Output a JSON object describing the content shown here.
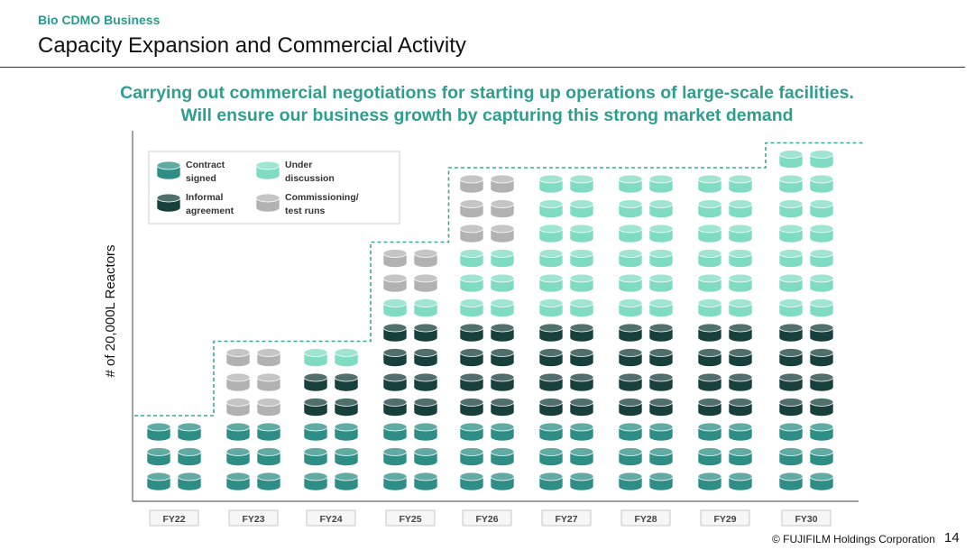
{
  "header": {
    "section_label": "Bio CDMO Business",
    "title": "Capacity Expansion and Commercial Activity"
  },
  "headline": {
    "line1": "Carrying out commercial negotiations for starting up operations of large-scale facilities.",
    "line2": "Will ensure our business growth by capturing this strong market demand"
  },
  "chart_data": {
    "type": "bar",
    "stacked": true,
    "ylabel": "# of 20,000L Reactors",
    "categories": [
      "FY22",
      "FY23",
      "FY24",
      "FY25",
      "FY26",
      "FY27",
      "FY28",
      "FY29",
      "FY30"
    ],
    "series": [
      {
        "name": "Contract signed",
        "color": "#2e8e86",
        "values": [
          6,
          6,
          6,
          6,
          6,
          6,
          6,
          6,
          6
        ]
      },
      {
        "name": "Informal agreement",
        "color": "#173f3c",
        "values": [
          0,
          0,
          4,
          8,
          8,
          8,
          8,
          8,
          8
        ]
      },
      {
        "name": "Under discussion",
        "color": "#7fdcc3",
        "values": [
          0,
          0,
          2,
          2,
          6,
          12,
          12,
          12,
          14
        ]
      },
      {
        "name": "Commissioning/ test runs",
        "color": "#b2b2b2",
        "values": [
          0,
          6,
          0,
          4,
          6,
          0,
          0,
          0,
          0
        ]
      }
    ],
    "legend_position": "top-left",
    "capacity_line": "dashed step line above the stacks"
  },
  "legend": [
    {
      "line1": "Contract",
      "line2": "signed",
      "color": "#2e8e86"
    },
    {
      "line1": "Under",
      "line2": "discussion",
      "color": "#7fdcc3"
    },
    {
      "line1": "Informal",
      "line2": "agreement",
      "color": "#173f3c"
    },
    {
      "line1": "Commissioning/",
      "line2": "test runs",
      "color": "#b2b2b2"
    }
  ],
  "footer": {
    "copyright": "© FUJIFILM Holdings Corporation",
    "page_number": "14"
  }
}
